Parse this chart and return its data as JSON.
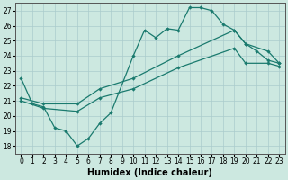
{
  "title": "",
  "xlabel": "Humidex (Indice chaleur)",
  "bg_color": "#cce8e0",
  "grid_color": "#aacccc",
  "line_color": "#1a7a6e",
  "xlim": [
    -0.5,
    23.5
  ],
  "ylim": [
    17.5,
    27.5
  ],
  "xticks": [
    0,
    1,
    2,
    3,
    4,
    5,
    6,
    7,
    8,
    9,
    10,
    11,
    12,
    13,
    14,
    15,
    16,
    17,
    18,
    19,
    20,
    21,
    22,
    23
  ],
  "yticks": [
    18,
    19,
    20,
    21,
    22,
    23,
    24,
    25,
    26,
    27
  ],
  "series1_x": [
    0,
    1,
    2,
    3,
    4,
    5,
    6,
    7,
    8,
    10,
    11,
    12,
    13,
    14,
    15,
    16,
    17,
    18,
    19,
    20,
    21,
    22,
    23
  ],
  "series1_y": [
    22.5,
    20.8,
    20.6,
    19.2,
    19.0,
    18.0,
    18.5,
    19.5,
    20.2,
    24.0,
    25.7,
    25.2,
    25.8,
    25.7,
    27.2,
    27.2,
    27.0,
    26.1,
    25.7,
    24.8,
    24.3,
    23.7,
    23.5
  ],
  "series2_x": [
    0,
    2,
    5,
    7,
    10,
    14,
    19,
    20,
    22,
    23
  ],
  "series2_y": [
    21.2,
    20.8,
    20.8,
    21.8,
    22.5,
    24.0,
    25.7,
    24.8,
    24.3,
    23.5
  ],
  "series3_x": [
    0,
    2,
    5,
    7,
    10,
    14,
    19,
    20,
    22,
    23
  ],
  "series3_y": [
    21.0,
    20.5,
    20.3,
    21.2,
    21.8,
    23.2,
    24.5,
    23.5,
    23.5,
    23.3
  ]
}
